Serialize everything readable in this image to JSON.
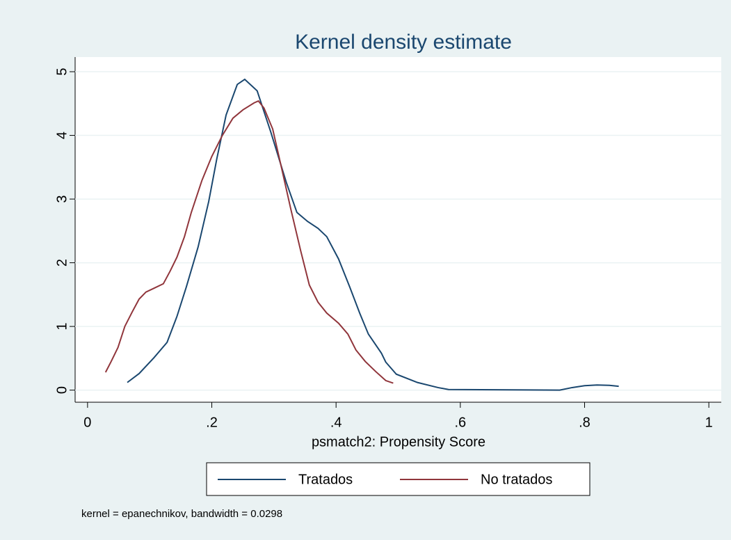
{
  "chart_data": {
    "type": "line",
    "title": "Kernel density estimate",
    "x_label": "psmatch2: Propensity Score",
    "note": "kernel = epanechnikov, bandwidth = 0.0298",
    "xlim": [
      -0.02,
      1.02
    ],
    "ylim": [
      -0.19,
      5.23
    ],
    "xticks": [
      0,
      {
        "value": 0.2,
        "label": ".2"
      },
      {
        "value": 0.4,
        "label": ".4"
      },
      {
        "value": 0.6,
        "label": ".6"
      },
      {
        "value": 0.8,
        "label": ".8"
      },
      1
    ],
    "yticks": [
      0,
      1,
      2,
      3,
      4,
      5
    ],
    "grid": true,
    "legend_position": "bottom",
    "series": [
      {
        "name": "Tratados",
        "color": "#1a476f",
        "x": [
          0.064,
          0.083,
          0.107,
          0.128,
          0.144,
          0.159,
          0.178,
          0.195,
          0.208,
          0.223,
          0.241,
          0.253,
          0.273,
          0.295,
          0.32,
          0.337,
          0.354,
          0.371,
          0.385,
          0.404,
          0.422,
          0.438,
          0.452,
          0.473,
          0.48,
          0.497,
          0.531,
          0.564,
          0.581,
          0.76,
          0.78,
          0.8,
          0.82,
          0.84,
          0.855
        ],
        "values": [
          0.12,
          0.26,
          0.51,
          0.75,
          1.16,
          1.62,
          2.25,
          2.96,
          3.63,
          4.32,
          4.8,
          4.88,
          4.7,
          4.05,
          3.26,
          2.79,
          2.65,
          2.54,
          2.41,
          2.06,
          1.62,
          1.21,
          0.88,
          0.58,
          0.44,
          0.25,
          0.12,
          0.04,
          0.01,
          0,
          0.04,
          0.07,
          0.08,
          0.075,
          0.06
        ]
      },
      {
        "name": "No tratados",
        "color": "#90353b",
        "x": [
          0.029,
          0.038,
          0.049,
          0.06,
          0.072,
          0.083,
          0.094,
          0.107,
          0.122,
          0.133,
          0.144,
          0.156,
          0.167,
          0.184,
          0.2,
          0.217,
          0.234,
          0.25,
          0.268,
          0.275,
          0.284,
          0.298,
          0.312,
          0.327,
          0.343,
          0.357,
          0.371,
          0.385,
          0.404,
          0.419,
          0.432,
          0.447,
          0.464,
          0.48,
          0.492
        ],
        "values": [
          0.28,
          0.45,
          0.67,
          1.0,
          1.23,
          1.43,
          1.54,
          1.6,
          1.67,
          1.87,
          2.09,
          2.41,
          2.79,
          3.29,
          3.67,
          4.0,
          4.27,
          4.4,
          4.51,
          4.54,
          4.43,
          4.1,
          3.5,
          2.85,
          2.19,
          1.65,
          1.38,
          1.21,
          1.05,
          0.88,
          0.63,
          0.45,
          0.29,
          0.15,
          0.11
        ]
      }
    ]
  }
}
